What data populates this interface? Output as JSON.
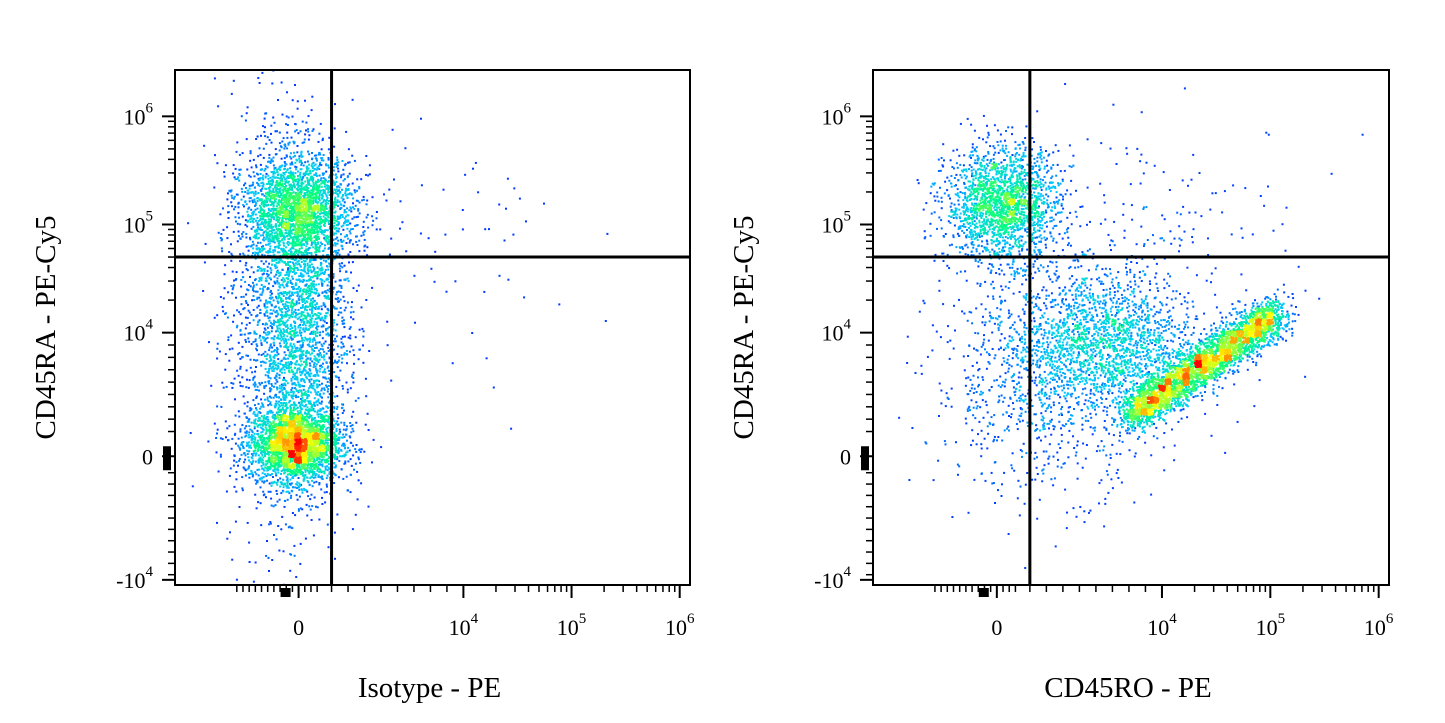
{
  "chart_data": [
    {
      "type": "scatter",
      "style": "density pseudocolor (blue -> cyan -> green -> yellow -> red)",
      "xlabel": "Isotype - PE",
      "ylabel": "CD45RA - PE-Cy5",
      "x_scale": "biexponential",
      "y_scale": "biexponential",
      "x_ticks": [
        {
          "value": 0,
          "base": "0",
          "exp": ""
        },
        {
          "value": 10000,
          "base": "10",
          "exp": "4"
        },
        {
          "value": 100000,
          "base": "10",
          "exp": "5"
        },
        {
          "value": 1000000,
          "base": "10",
          "exp": "6"
        }
      ],
      "y_ticks": [
        {
          "value": -10000,
          "base": "-10",
          "exp": "4"
        },
        {
          "value": 0,
          "base": "0",
          "exp": ""
        },
        {
          "value": 10000,
          "base": "10",
          "exp": "4"
        },
        {
          "value": 100000,
          "base": "10",
          "exp": "5"
        },
        {
          "value": 1000000,
          "base": "10",
          "exp": "6"
        }
      ],
      "quadrant_gate": {
        "x": 2000,
        "y": 50000
      },
      "populations": [
        {
          "name": "lower-left",
          "x_center": 0,
          "y_center": 300,
          "density": "highest"
        },
        {
          "name": "upper-left",
          "x_center": 200,
          "y_center": 150000,
          "density": "high"
        }
      ],
      "colors": [
        "#0000ff",
        "#00c8ff",
        "#00ff80",
        "#ffff00",
        "#ff0000"
      ]
    },
    {
      "type": "scatter",
      "style": "density pseudocolor (blue -> cyan -> green -> yellow -> red)",
      "xlabel": "CD45RO - PE",
      "ylabel": "CD45RA - PE-Cy5",
      "x_scale": "biexponential",
      "y_scale": "biexponential",
      "x_ticks": [
        {
          "value": 0,
          "base": "0",
          "exp": ""
        },
        {
          "value": 10000,
          "base": "10",
          "exp": "4"
        },
        {
          "value": 100000,
          "base": "10",
          "exp": "5"
        },
        {
          "value": 1000000,
          "base": "10",
          "exp": "6"
        }
      ],
      "y_ticks": [
        {
          "value": -10000,
          "base": "-10",
          "exp": "4"
        },
        {
          "value": 0,
          "base": "0",
          "exp": ""
        },
        {
          "value": 10000,
          "base": "10",
          "exp": "4"
        },
        {
          "value": 100000,
          "base": "10",
          "exp": "5"
        },
        {
          "value": 1000000,
          "base": "10",
          "exp": "6"
        }
      ],
      "quadrant_gate": {
        "x": 2000,
        "y": 50000
      },
      "populations": [
        {
          "name": "upper-left",
          "x_center": 0,
          "y_center": 120000,
          "density": "high"
        },
        {
          "name": "lower-right",
          "x_center": 20000,
          "y_center": 3000,
          "density": "highest"
        }
      ],
      "colors": [
        "#0000ff",
        "#00c8ff",
        "#00ff80",
        "#ffff00",
        "#ff0000"
      ]
    }
  ]
}
